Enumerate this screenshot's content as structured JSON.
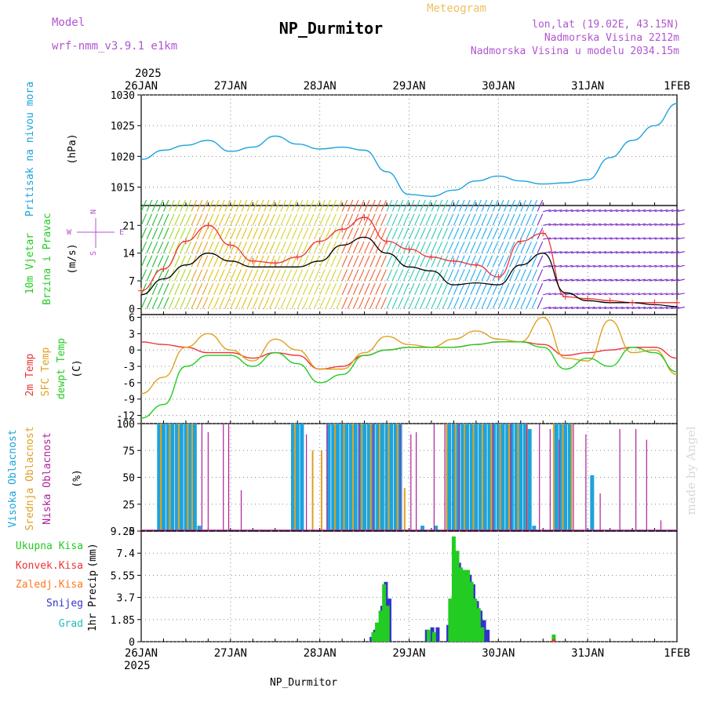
{
  "header": {
    "model_label": "Model",
    "model_name": "wrf-nmm_v3.9.1  e1km",
    "title": "NP_Durmitor",
    "subtitle": "Meteogram",
    "coords": "lon,lat (19.02E, 43.15N)",
    "elevation": "Nadmorska Visina 2212m",
    "model_elevation": "Nadmorska Visina u modelu 2034.15m",
    "year_top": "2025",
    "year_bottom": "2025",
    "footer": "NP_Durmitor",
    "watermark": "made by Angel"
  },
  "colors": {
    "pressure": "#1ca3dc",
    "temp2m": "#ee3333",
    "sfc": "#e0a020",
    "dew": "#22cc22",
    "high": "#1ca3dc",
    "mid": "#e0a020",
    "low": "#b0209a",
    "total": "#22cc22",
    "conv": "#ee3333",
    "frozen": "#ff7722",
    "snow": "#3333cc",
    "hail": "#22bbbb",
    "wind_mean": "#000000",
    "gust": "#ee3333",
    "compass": "#b055d0"
  },
  "chart_data": [
    {
      "type": "line",
      "panel": "pressure",
      "ylabel": "Pritisak na nivou mora",
      "unit": "(hPa)",
      "ylim": [
        1012,
        1030
      ],
      "yticks": [
        1015,
        1020,
        1025,
        1030
      ],
      "x_labels": [
        "26JAN",
        "27JAN",
        "28JAN",
        "29JAN",
        "30JAN",
        "31JAN",
        "1FEB"
      ],
      "x": [
        0,
        0.25,
        0.5,
        0.75,
        1.0,
        1.25,
        1.5,
        1.75,
        2.0,
        2.25,
        2.5,
        2.75,
        3.0,
        3.25,
        3.5,
        3.75,
        4.0,
        4.25,
        4.5,
        4.75,
        5.0,
        5.25,
        5.5,
        5.75,
        6.0
      ],
      "series": [
        {
          "name": "Pritisak na nivou mora",
          "values": [
            1019.5,
            1021.0,
            1021.8,
            1022.6,
            1020.8,
            1021.5,
            1023.3,
            1022.0,
            1021.2,
            1021.5,
            1021.0,
            1017.5,
            1013.8,
            1013.5,
            1014.5,
            1016.0,
            1016.8,
            1016.0,
            1015.5,
            1015.7,
            1016.2,
            1019.8,
            1022.6,
            1025.0,
            1028.6
          ]
        }
      ]
    },
    {
      "type": "line",
      "panel": "wind",
      "ylabel": "10m Vjetar",
      "ylabel2": "Brzina i Pravac",
      "unit": "(m/s)",
      "ylim": [
        -1.5,
        26
      ],
      "yticks": [
        0,
        7,
        14,
        21
      ],
      "compass": {
        "n": "N",
        "w": "W",
        "e": "E",
        "s": "S"
      },
      "x": [
        0,
        0.25,
        0.5,
        0.75,
        1.0,
        1.25,
        1.5,
        1.75,
        2.0,
        2.25,
        2.5,
        2.75,
        3.0,
        3.25,
        3.5,
        3.75,
        4.0,
        4.25,
        4.5,
        4.75,
        5.0,
        5.25,
        5.5,
        5.75,
        6.0
      ],
      "series": [
        {
          "name": "mean",
          "values": [
            3.5,
            7.5,
            11.0,
            14.0,
            12.0,
            10.5,
            10.5,
            10.5,
            12.0,
            16.0,
            18.0,
            14.0,
            10.5,
            9.5,
            6.0,
            6.5,
            6.0,
            11.0,
            14.0,
            4.0,
            2.0,
            1.5,
            1.5,
            1.0,
            0.5
          ]
        },
        {
          "name": "gust",
          "values": [
            4.5,
            10.0,
            17.0,
            21.0,
            16.0,
            12.0,
            11.5,
            13.0,
            17.0,
            20.0,
            23.0,
            17.0,
            15.0,
            13.0,
            12.0,
            11.0,
            8.0,
            17.0,
            19.0,
            3.0,
            2.5,
            2.0,
            1.5,
            1.5,
            1.5
          ]
        }
      ]
    },
    {
      "type": "line",
      "panel": "temperature",
      "ylabel": "2m Temp",
      "ylabel2": "SFC Temp",
      "ylabel3": "dewpt Temp",
      "unit": "(C)",
      "ylim": [
        -13.5,
        6.5
      ],
      "yticks": [
        -12,
        -9,
        -6,
        -3,
        0,
        3,
        6
      ],
      "x": [
        0,
        0.25,
        0.5,
        0.75,
        1.0,
        1.25,
        1.5,
        1.75,
        2.0,
        2.25,
        2.5,
        2.75,
        3.0,
        3.25,
        3.5,
        3.75,
        4.0,
        4.25,
        4.5,
        4.75,
        5.0,
        5.25,
        5.5,
        5.75,
        6.0
      ],
      "series": [
        {
          "name": "2m Temp",
          "values": [
            1.5,
            1.0,
            0.5,
            -0.5,
            -0.5,
            -1.5,
            -0.5,
            -1.0,
            -3.5,
            -3.0,
            -1.0,
            0.0,
            0.5,
            0.5,
            0.5,
            1.0,
            1.5,
            1.5,
            1.0,
            -1.0,
            -0.5,
            0.0,
            0.5,
            0.5,
            -1.5
          ]
        },
        {
          "name": "SFC Temp",
          "values": [
            -8.0,
            -5.0,
            0.5,
            3.0,
            0.0,
            -2.0,
            2.0,
            0.0,
            -3.5,
            -3.5,
            -0.5,
            2.5,
            1.0,
            0.5,
            2.0,
            3.5,
            2.0,
            1.5,
            6.0,
            -1.5,
            -2.0,
            5.5,
            -0.5,
            0.0,
            -4.5
          ]
        },
        {
          "name": "dewpt Temp",
          "values": [
            -12.5,
            -10.0,
            -3.0,
            -1.0,
            -1.0,
            -3.0,
            -0.5,
            -2.5,
            -6.0,
            -4.5,
            -1.0,
            0.0,
            0.5,
            0.5,
            0.5,
            1.0,
            1.5,
            1.5,
            0.5,
            -3.5,
            -1.5,
            -3.0,
            0.5,
            -0.5,
            -4.0
          ]
        }
      ]
    },
    {
      "type": "bar",
      "panel": "clouds",
      "ylabel": "Visoka Oblacnost",
      "ylabel2": "Srednja Oblacnost",
      "ylabel3": "Niska Oblacnost",
      "unit": "(%)",
      "ylim": [
        0,
        100
      ],
      "yticks": [
        0,
        25,
        50,
        75,
        100
      ],
      "series": [
        {
          "name": "Visoka Oblacnost",
          "x": [
            0.2,
            0.25,
            0.3,
            0.35,
            0.4,
            0.45,
            0.5,
            0.55,
            0.6,
            0.65,
            1.7,
            1.75,
            1.8,
            2.1,
            2.15,
            2.2,
            2.25,
            2.3,
            2.35,
            2.4,
            2.45,
            2.5,
            2.55,
            2.6,
            2.65,
            2.7,
            2.75,
            2.8,
            2.85,
            2.9,
            3.15,
            3.3,
            3.45,
            3.5,
            3.55,
            3.6,
            3.65,
            3.7,
            3.75,
            3.8,
            3.85,
            3.9,
            3.95,
            4.0,
            4.05,
            4.1,
            4.15,
            4.2,
            4.25,
            4.3,
            4.35,
            4.4,
            4.65,
            4.7,
            4.75,
            4.8,
            5.05
          ],
          "values": [
            100,
            100,
            100,
            100,
            100,
            100,
            100,
            100,
            100,
            5,
            100,
            100,
            100,
            100,
            100,
            100,
            100,
            100,
            100,
            100,
            100,
            100,
            100,
            100,
            100,
            100,
            100,
            100,
            100,
            100,
            5,
            5,
            100,
            100,
            100,
            100,
            100,
            100,
            100,
            100,
            100,
            100,
            100,
            100,
            100,
            100,
            100,
            100,
            100,
            100,
            95,
            5,
            100,
            100,
            100,
            100,
            52
          ]
        },
        {
          "name": "Srednja Oblacnost",
          "x": [
            0.22,
            0.32,
            0.42,
            0.52,
            0.57,
            1.72,
            1.92,
            2.02,
            2.17,
            2.27,
            2.37,
            2.47,
            2.57,
            2.67,
            2.77,
            2.87,
            2.95,
            3.42,
            3.52,
            3.62,
            3.72,
            3.82,
            3.92,
            4.02,
            4.12,
            4.22,
            4.32,
            4.62,
            4.72,
            4.82
          ],
          "values": [
            100,
            100,
            100,
            100,
            100,
            100,
            75,
            75,
            100,
            100,
            100,
            100,
            100,
            100,
            100,
            100,
            40,
            100,
            100,
            100,
            100,
            100,
            100,
            100,
            100,
            100,
            100,
            100,
            100,
            100
          ]
        },
        {
          "name": "Niska Oblacnost",
          "x": [
            0.68,
            0.75,
            0.92,
            0.98,
            1.12,
            1.85,
            2.08,
            2.44,
            2.6,
            2.9,
            3.02,
            3.08,
            3.28,
            3.4,
            3.56,
            3.94,
            4.14,
            4.32,
            4.46,
            4.58,
            4.68,
            4.84,
            4.98,
            5.14,
            5.36,
            5.54,
            5.66,
            5.82
          ],
          "values": [
            100,
            92,
            100,
            100,
            38,
            90,
            100,
            100,
            100,
            100,
            90,
            92,
            100,
            100,
            100,
            100,
            100,
            100,
            100,
            95,
            85,
            100,
            90,
            35,
            95,
            95,
            85,
            10
          ]
        }
      ]
    },
    {
      "type": "bar",
      "panel": "precipitation",
      "ylabel": "1hr Precip",
      "unit": "(mm)",
      "ylim": [
        0,
        9.25
      ],
      "yticks": [
        0,
        1.85,
        3.7,
        5.55,
        7.4,
        9.25
      ],
      "legend": [
        "Ukupna Kisa",
        "Konvek.Kisa",
        "Zaledj.Kisa",
        "Snijeg",
        "Grad"
      ],
      "series": [
        {
          "name": "Snijeg",
          "x": [
            2.58,
            2.62,
            2.66,
            2.7,
            2.74,
            2.78,
            3.2,
            3.26,
            3.32,
            3.44,
            3.48,
            3.52,
            3.56,
            3.6,
            3.64,
            3.68,
            3.72,
            3.76,
            3.8,
            3.84,
            3.88
          ],
          "values": [
            0.4,
            1.0,
            1.6,
            3.0,
            5.0,
            3.6,
            1.0,
            1.2,
            1.2,
            1.4,
            3.2,
            5.6,
            6.6,
            5.8,
            6.0,
            5.6,
            4.8,
            3.4,
            2.6,
            1.8,
            1.0
          ]
        },
        {
          "name": "Ukupna Kisa",
          "x": [
            2.6,
            2.64,
            2.68,
            2.72,
            2.76,
            3.22,
            3.28,
            3.46,
            3.5,
            3.54,
            3.58,
            3.62,
            3.66,
            3.7,
            3.74,
            3.78,
            3.82,
            4.62
          ],
          "values": [
            0.8,
            1.6,
            2.6,
            4.8,
            3.0,
            1.0,
            0.8,
            3.6,
            8.8,
            7.6,
            6.2,
            6.0,
            6.0,
            5.0,
            3.6,
            2.8,
            1.2,
            0.6
          ]
        },
        {
          "name": "Konvek.Kisa",
          "x": [
            4.62
          ],
          "values": [
            0.2
          ]
        }
      ]
    }
  ]
}
